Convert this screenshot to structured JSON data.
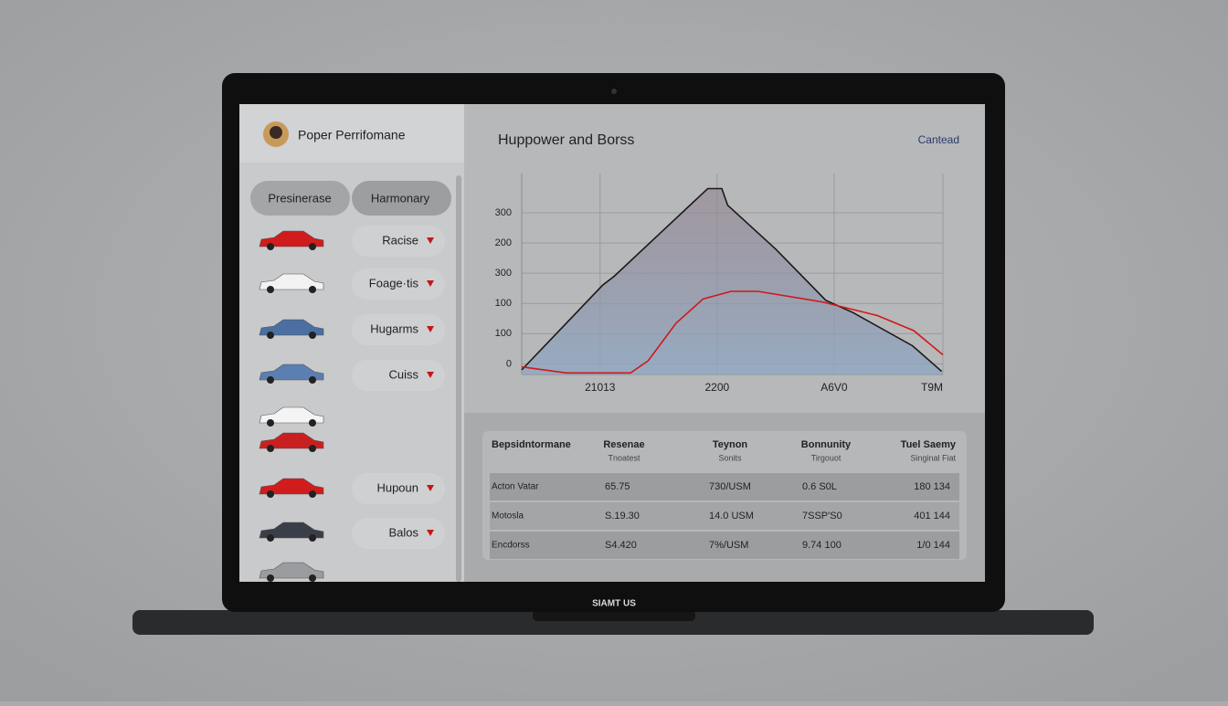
{
  "laptop_label": "SIAMT US",
  "sidebar": {
    "profile_name": "Poper Perrifomane",
    "tabs": [
      "Presinerase",
      "Harmonary"
    ],
    "buttons": [
      "Racise",
      "Foage·tis",
      "Hugarms",
      "Cuiss",
      "Hupoun",
      "Balos"
    ]
  },
  "header": {
    "title": "Huppower and Borss",
    "link": "Cantead"
  },
  "chart_data": {
    "type": "line",
    "xlim": [
      0.33,
      3.93
    ],
    "xticks": [
      {
        "value": 1,
        "label": "21013"
      },
      {
        "value": 2,
        "label": "2200"
      },
      {
        "value": 3,
        "label": "A6V0"
      },
      {
        "value": 3.93,
        "label": "T9M"
      }
    ],
    "ylim": [
      -35,
      630
    ],
    "yticks": [
      {
        "value": 500,
        "label": "300"
      },
      {
        "value": 400,
        "label": "200"
      },
      300,
      {
        "value": 200,
        "label": "100"
      },
      100,
      0
    ],
    "grid": true,
    "series": [
      {
        "color": "#1a1a1a",
        "x": [
          0.33,
          1.02,
          1.12,
          1.92,
          2.04,
          2.09,
          2.5,
          2.93,
          3.16,
          3.67,
          3.92
        ],
        "values": [
          -20,
          260,
          290,
          580,
          580,
          525,
          380,
          210,
          170,
          60,
          -25
        ]
      },
      {
        "color": "#d01818",
        "x": [
          0.33,
          0.71,
          1.26,
          1.41,
          1.65,
          1.88,
          2.12,
          2.35,
          2.9,
          3.37,
          3.68,
          3.93
        ],
        "values": [
          -10,
          -30,
          -30,
          10,
          135,
          215,
          240,
          240,
          205,
          160,
          110,
          30
        ]
      }
    ]
  },
  "table": {
    "headers": [
      [
        "Bepsidntormane",
        ""
      ],
      [
        "Resenae",
        "Tnoatest"
      ],
      [
        "Teynon",
        "Sonits"
      ],
      [
        "Bonnunity",
        "Tirgouot"
      ],
      [
        "Tuel Saemy",
        "Singinal Fiat"
      ]
    ],
    "rows": [
      [
        "Acton Vatar",
        "65.75",
        "730/USM",
        "0.6 S0L",
        "180 134"
      ],
      [
        "Motosla",
        "S.19.30",
        "14.0 USM",
        "7SSP'S0",
        "401 144"
      ],
      [
        "Encdorss",
        "S4.420",
        "7%/USM",
        "9.74 100",
        "1/0 144"
      ]
    ]
  }
}
